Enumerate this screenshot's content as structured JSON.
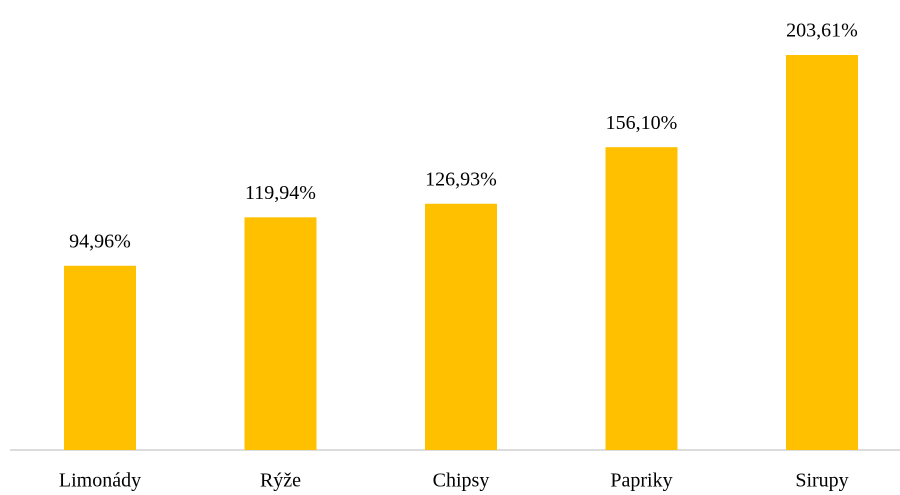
{
  "chart_data": {
    "type": "bar",
    "categories": [
      "Limonády",
      "Rýže",
      "Chipsy",
      "Papriky",
      "Sirupy"
    ],
    "values": [
      94.96,
      119.94,
      126.93,
      156.1,
      203.61
    ],
    "value_labels": [
      "94,96%",
      "119,94%",
      "126,93%",
      "156,10%",
      "203,61%"
    ],
    "color": "#ffc000"
  }
}
